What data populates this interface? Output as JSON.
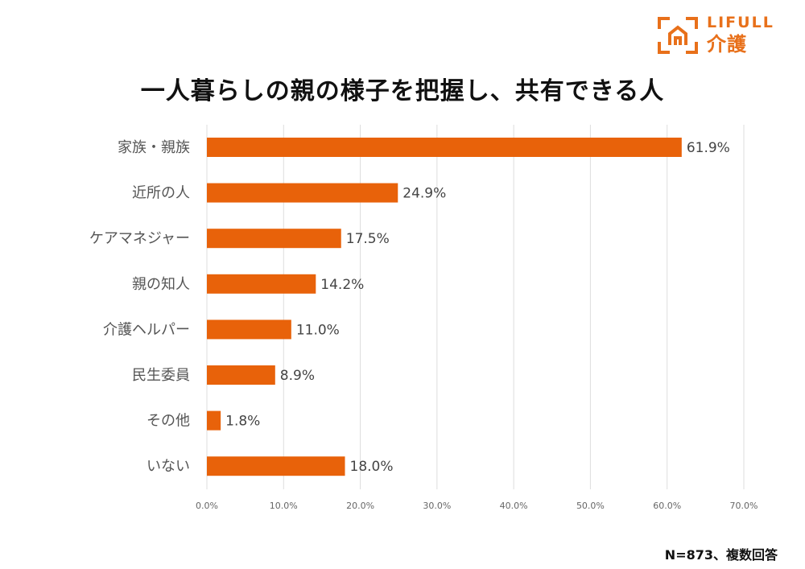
{
  "logo": {
    "brand": "LIFULL",
    "sub": "介護",
    "icon": "house-bracket-icon",
    "color": "#e8701a"
  },
  "footnote": "N=873、複数回答",
  "chart_data": {
    "type": "bar",
    "orientation": "horizontal",
    "title": "一人暮らしの親の様子を把握し、共有できる人",
    "categories": [
      "家族・親族",
      "近所の人",
      "ケアマネジャー",
      "親の知人",
      "介護ヘルパー",
      "民生委員",
      "その他",
      "いない"
    ],
    "values": [
      61.9,
      24.9,
      17.5,
      14.2,
      11.0,
      8.9,
      1.8,
      18.0
    ],
    "value_labels": [
      "61.9%",
      "24.9%",
      "17.5%",
      "14.2%",
      "11.0%",
      "8.9%",
      "1.8%",
      "18.0%"
    ],
    "xlim": [
      0,
      70
    ],
    "xticks": [
      0,
      10,
      20,
      30,
      40,
      50,
      60,
      70
    ],
    "xtick_labels": [
      "0.0%",
      "10.0%",
      "20.0%",
      "30.0%",
      "40.0%",
      "50.0%",
      "60.0%",
      "70.0%"
    ],
    "xlabel": "",
    "ylabel": "",
    "grid": "vertical",
    "bar_color": "#e8620a",
    "grid_color": "#dddddd"
  }
}
